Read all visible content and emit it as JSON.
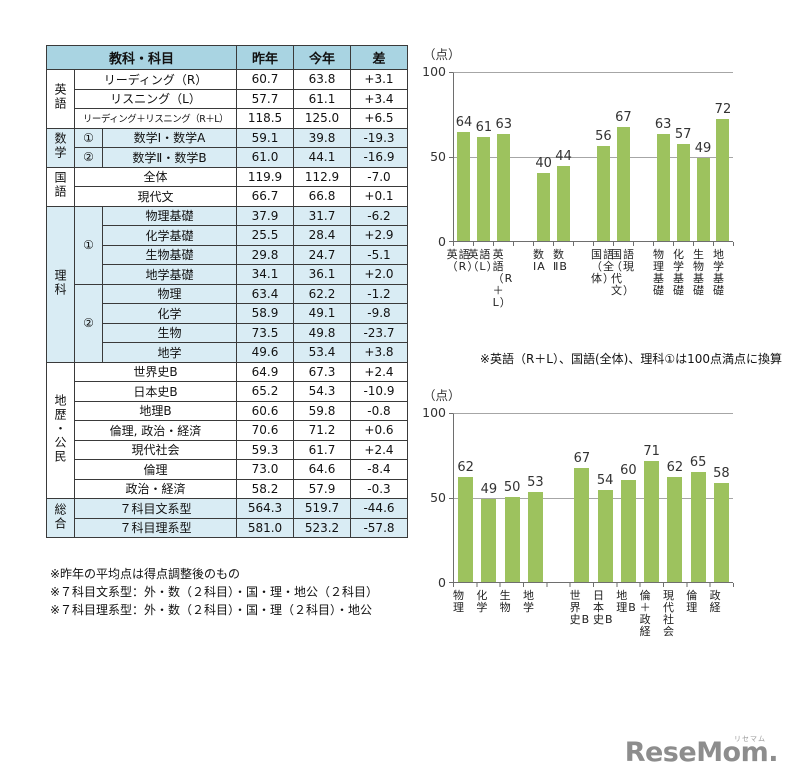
{
  "table": {
    "header": {
      "subject_col": "教科・科目",
      "col_last_year": "昨年",
      "col_this_year": "今年",
      "col_diff": "差"
    },
    "sections": [
      {
        "name": "英語",
        "shaded": false,
        "rows": [
          {
            "group": null,
            "subject": "リーディング（R）",
            "last_year": "60.7",
            "this_year": "63.8",
            "diff": "+3.1"
          },
          {
            "group": null,
            "subject": "リスニング（L）",
            "last_year": "57.7",
            "this_year": "61.1",
            "diff": "+3.4"
          },
          {
            "group": null,
            "subject": "リーディング＋リスニング（R＋L）",
            "last_year": "118.5",
            "this_year": "125.0",
            "diff": "+6.5"
          }
        ]
      },
      {
        "name": "数学",
        "shaded": true,
        "rows": [
          {
            "group": "①",
            "subject": "数学Ⅰ・数学A",
            "last_year": "59.1",
            "this_year": "39.8",
            "diff": "-19.3"
          },
          {
            "group": "②",
            "subject": "数学Ⅱ・数学B",
            "last_year": "61.0",
            "this_year": "44.1",
            "diff": "-16.9"
          }
        ]
      },
      {
        "name": "国語",
        "shaded": false,
        "rows": [
          {
            "group": null,
            "subject": "全体",
            "last_year": "119.9",
            "this_year": "112.9",
            "diff": "-7.0"
          },
          {
            "group": null,
            "subject": "現代文",
            "last_year": "66.7",
            "this_year": "66.8",
            "diff": "+0.1"
          }
        ]
      },
      {
        "name": "理科",
        "shaded": true,
        "rows": [
          {
            "group": "①",
            "subject": "物理基礎",
            "last_year": "37.9",
            "this_year": "31.7",
            "diff": "-6.2"
          },
          {
            "group": "①",
            "subject": "化学基礎",
            "last_year": "25.5",
            "this_year": "28.4",
            "diff": "+2.9"
          },
          {
            "group": "①",
            "subject": "生物基礎",
            "last_year": "29.8",
            "this_year": "24.7",
            "diff": "-5.1"
          },
          {
            "group": "①",
            "subject": "地学基礎",
            "last_year": "34.1",
            "this_year": "36.1",
            "diff": "+2.0"
          },
          {
            "group": "②",
            "subject": "物理",
            "last_year": "63.4",
            "this_year": "62.2",
            "diff": "-1.2"
          },
          {
            "group": "②",
            "subject": "化学",
            "last_year": "58.9",
            "this_year": "49.1",
            "diff": "-9.8"
          },
          {
            "group": "②",
            "subject": "生物",
            "last_year": "73.5",
            "this_year": "49.8",
            "diff": "-23.7"
          },
          {
            "group": "②",
            "subject": "地学",
            "last_year": "49.6",
            "this_year": "53.4",
            "diff": "+3.8"
          }
        ]
      },
      {
        "name": "地歴・公民",
        "shaded": false,
        "rows": [
          {
            "group": null,
            "subject": "世界史B",
            "last_year": "64.9",
            "this_year": "67.3",
            "diff": "+2.4"
          },
          {
            "group": null,
            "subject": "日本史B",
            "last_year": "65.2",
            "this_year": "54.3",
            "diff": "-10.9"
          },
          {
            "group": null,
            "subject": "地理B",
            "last_year": "60.6",
            "this_year": "59.8",
            "diff": "-0.8"
          },
          {
            "group": null,
            "subject": "倫理, 政治・経済",
            "last_year": "70.6",
            "this_year": "71.2",
            "diff": "+0.6"
          },
          {
            "group": null,
            "subject": "現代社会",
            "last_year": "59.3",
            "this_year": "61.7",
            "diff": "+2.4"
          },
          {
            "group": null,
            "subject": "倫理",
            "last_year": "73.0",
            "this_year": "64.6",
            "diff": "-8.4"
          },
          {
            "group": null,
            "subject": "政治・経済",
            "last_year": "58.2",
            "this_year": "57.9",
            "diff": "-0.3"
          }
        ]
      },
      {
        "name": "総合",
        "shaded": true,
        "rows": [
          {
            "group": null,
            "subject": "７科目文系型",
            "last_year": "564.3",
            "this_year": "519.7",
            "diff": "-44.6"
          },
          {
            "group": null,
            "subject": "７科目理系型",
            "last_year": "581.0",
            "this_year": "523.2",
            "diff": "-57.8"
          }
        ]
      }
    ],
    "footnotes": [
      "※昨年の平均点は得点調整後のもの",
      "※７科目文系型：外・数（２科目）・国・理・地公（２科目）",
      "※７科目理系型：外・数（２科目）・国・理（２科目）・地公"
    ]
  },
  "chart_data": [
    {
      "type": "bar",
      "unit_label": "（点）",
      "ylabel": "点",
      "ylim": [
        0,
        100
      ],
      "yticks": [
        100,
        50,
        0
      ],
      "grid": "horizontal lines at 50 and 100",
      "legend": "none",
      "bar_color": "#9dc25e",
      "groups": [
        {
          "categories": [
            "英語（R）",
            "英語（L）",
            "英語（R＋L）"
          ],
          "values": [
            64,
            61,
            63
          ]
        },
        {
          "categories": [
            "数ⅠA",
            "数ⅡB"
          ],
          "values": [
            40,
            44
          ]
        },
        {
          "categories": [
            "国語（全体）",
            "国語（現代文）"
          ],
          "values": [
            56,
            67
          ]
        },
        {
          "categories": [
            "物理基礎",
            "化学基礎",
            "生物基礎",
            "地学基礎"
          ],
          "values": [
            63,
            57,
            49,
            72
          ]
        }
      ],
      "footnote": "※英語（R＋L）、国語(全体)、理科①は100点満点に換算"
    },
    {
      "type": "bar",
      "unit_label": "（点）",
      "ylabel": "点",
      "ylim": [
        0,
        100
      ],
      "yticks": [
        100,
        50,
        0
      ],
      "grid": "horizontal lines at 50 and 100",
      "legend": "none",
      "bar_color": "#9dc25e",
      "groups": [
        {
          "categories": [
            "物理",
            "化学",
            "生物",
            "地学"
          ],
          "values": [
            62,
            49,
            50,
            53
          ]
        },
        {
          "categories": [
            "世界史B",
            "日本史B",
            "地理B",
            "倫＋政経",
            "現代社会",
            "倫理",
            "政経"
          ],
          "values": [
            67,
            54,
            60,
            71,
            62,
            65,
            58
          ]
        }
      ]
    }
  ],
  "logo": {
    "text": "ReseMom.",
    "ruby": "リセマム"
  }
}
